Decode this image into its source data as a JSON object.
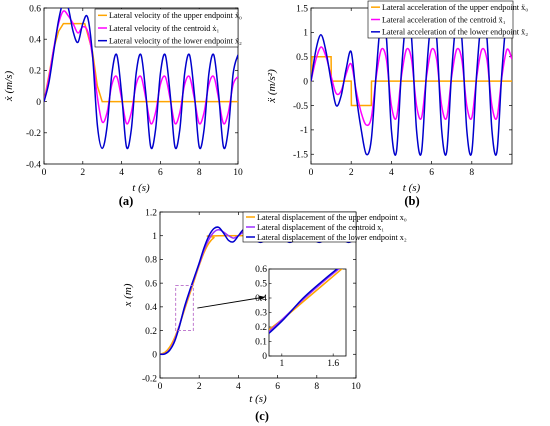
{
  "panels": {
    "a": "(a)",
    "b": "(b)",
    "c": "(c)"
  },
  "chart_data": [
    {
      "type": "line",
      "xlabel": "t (s)",
      "ylabel": "ẋ (m/s)",
      "xlim": [
        0,
        10
      ],
      "ylim": [
        -0.4,
        0.6
      ],
      "xticks": [
        0,
        2,
        4,
        6,
        8,
        10
      ],
      "yticks": [
        -0.4,
        -0.2,
        0,
        0.2,
        0.4,
        0.6
      ],
      "x_tick_labels": [
        "0",
        "2",
        "4",
        "6",
        "8",
        "10"
      ],
      "y_tick_labels": [
        "-0.4",
        "-0.2",
        "0",
        "0.2",
        "0.4",
        "0.6"
      ],
      "legend_position": "top-right",
      "colors": [
        "#FFA500",
        "#FF00FF",
        "#0000CD"
      ],
      "series": [
        {
          "name": "Lateral velocity of the upper endpoint ẋ₀",
          "x": [
            0,
            0.3,
            0.5,
            0.75,
            1,
            2.1,
            2.5,
            2.75,
            3,
            10
          ],
          "y": [
            0,
            0.2,
            0.34,
            0.45,
            0.5,
            0.5,
            0.32,
            0.1,
            0,
            0
          ]
        },
        {
          "name": "Lateral velocity of the centroid ẋ₁",
          "x": [
            0,
            0.25,
            0.5,
            0.75,
            1,
            1.25,
            1.5,
            1.75,
            2,
            2.25,
            2.5,
            2.75,
            3,
            3.25,
            3.5,
            3.75,
            4,
            4.25,
            4.5,
            4.75,
            5,
            5.25,
            5.5,
            5.75,
            6,
            6.25,
            6.5,
            6.75,
            7,
            7.25,
            7.5,
            7.75,
            8,
            8.25,
            8.5,
            8.75,
            9,
            9.25,
            9.5,
            9.75,
            10
          ],
          "y": [
            0,
            0.15,
            0.34,
            0.5,
            0.58,
            0.55,
            0.5,
            0.44,
            0.48,
            0.45,
            0.29,
            0.03,
            -0.13,
            -0.07,
            0.11,
            0.16,
            0.02,
            -0.14,
            -0.07,
            0.11,
            0.16,
            0.02,
            -0.14,
            -0.07,
            0.11,
            0.16,
            0.02,
            -0.14,
            -0.07,
            0.11,
            0.16,
            0.02,
            -0.14,
            -0.07,
            0.11,
            0.16,
            0.02,
            -0.14,
            -0.07,
            0.11,
            0.16
          ]
        },
        {
          "name": "Lateral velocity of the lower endpoint ẋ₂",
          "x": [
            0,
            0.25,
            0.5,
            0.75,
            1,
            1.25,
            1.5,
            1.75,
            2,
            2.25,
            2.5,
            2.75,
            3,
            3.25,
            3.5,
            3.75,
            4,
            4.25,
            4.5,
            4.75,
            5,
            5.25,
            5.5,
            5.75,
            6,
            6.25,
            6.5,
            6.75,
            7,
            7.25,
            7.5,
            7.75,
            8,
            8.25,
            8.5,
            8.75,
            9,
            9.25,
            9.5,
            9.75,
            10
          ],
          "y": [
            0,
            0.12,
            0.32,
            0.52,
            0.64,
            0.6,
            0.45,
            0.38,
            0.5,
            0.54,
            0.3,
            -0.15,
            -0.3,
            -0.16,
            0.18,
            0.3,
            0.05,
            -0.29,
            -0.18,
            0.18,
            0.3,
            0.05,
            -0.29,
            -0.18,
            0.18,
            0.3,
            0.05,
            -0.29,
            -0.18,
            0.18,
            0.3,
            0.05,
            -0.29,
            -0.18,
            0.18,
            0.3,
            0.05,
            -0.29,
            -0.18,
            0.18,
            0.3
          ]
        }
      ]
    },
    {
      "type": "line",
      "xlabel": "t (s)",
      "ylabel": "ẍ (m/s²)",
      "xlim": [
        0,
        10
      ],
      "ylim": [
        -1.7,
        1.5
      ],
      "xticks": [
        0,
        2,
        4,
        6,
        8
      ],
      "yticks": [
        -1.5,
        -1,
        -0.5,
        0,
        0.5,
        1,
        1.5
      ],
      "x_tick_labels": [
        "0",
        "2",
        "4",
        "6",
        "8"
      ],
      "y_tick_labels": [
        "-1.5",
        "-1",
        "-0.5",
        "0",
        "0.5",
        "1",
        "1.5"
      ],
      "legend_position": "top-right",
      "colors": [
        "#FFA500",
        "#FF00FF",
        "#0000CD"
      ],
      "series": [
        {
          "name": "Lateral acceleration of the upper endpoint ẍ₀",
          "x": [
            0,
            0.05,
            1,
            1.01,
            2,
            2.01,
            3,
            3.01,
            10
          ],
          "y": [
            0,
            0.5,
            0.5,
            0,
            0,
            -0.5,
            -0.5,
            0,
            0
          ]
        },
        {
          "name": "Lateral acceleration of the centroid ẍ₁",
          "x": [
            0,
            0.25,
            0.5,
            0.75,
            1,
            1.25,
            1.5,
            1.75,
            2,
            2.25,
            2.5,
            2.75,
            3,
            3.25,
            3.5,
            3.75,
            4,
            4.25,
            4.5,
            4.75,
            5,
            5.25,
            5.5,
            5.75,
            6,
            6.25,
            6.5,
            6.75,
            7,
            7.25,
            7.5,
            7.75,
            8,
            8.25,
            8.5,
            8.75,
            9,
            9.25,
            9.5,
            9.75,
            10
          ],
          "y": [
            0,
            0.45,
            0.7,
            0.5,
            0.1,
            -0.25,
            -0.2,
            0.15,
            0.35,
            -0.2,
            -0.65,
            -0.9,
            -0.75,
            0.1,
            0.65,
            0.45,
            -0.5,
            -0.75,
            0.1,
            0.65,
            0.45,
            -0.5,
            -0.75,
            0.1,
            0.65,
            0.45,
            -0.5,
            -0.75,
            0.1,
            0.65,
            0.45,
            -0.5,
            -0.75,
            0.1,
            0.65,
            0.45,
            -0.5,
            -0.75,
            0.1,
            0.65,
            0.45
          ]
        },
        {
          "name": "Lateral acceleration of the lower endpoint ẍ₂",
          "x": [
            0,
            0.25,
            0.5,
            0.75,
            1,
            1.25,
            1.5,
            1.75,
            2,
            2.25,
            2.5,
            2.75,
            3,
            3.25,
            3.5,
            3.75,
            4,
            4.25,
            4.5,
            4.75,
            5,
            5.25,
            5.5,
            5.75,
            6,
            6.25,
            6.5,
            6.75,
            7,
            7.25,
            7.5,
            7.75,
            8,
            8.25,
            8.5,
            8.75,
            9,
            9.25,
            9.5,
            9.75,
            10
          ],
          "y": [
            0,
            0.65,
            0.95,
            0.6,
            0,
            -0.5,
            -0.3,
            0.25,
            0.6,
            -0.3,
            -1.0,
            -1.5,
            -1.2,
            0.2,
            1.3,
            0.9,
            -1.0,
            -1.45,
            0.2,
            1.3,
            0.9,
            -1.0,
            -1.45,
            0.2,
            1.3,
            0.9,
            -1.0,
            -1.45,
            0.2,
            1.3,
            0.9,
            -1.0,
            -1.45,
            0.2,
            1.3,
            0.9,
            -1.0,
            -1.45,
            0.2,
            1.3,
            0.9
          ]
        }
      ]
    },
    {
      "type": "line",
      "xlabel": "t (s)",
      "ylabel": "x (m)",
      "xlim": [
        0,
        10
      ],
      "ylim": [
        -0.2,
        1.2
      ],
      "xticks": [
        0,
        2,
        4,
        6,
        8,
        10
      ],
      "yticks": [
        -0.2,
        0,
        0.2,
        0.4,
        0.6,
        0.8,
        1,
        1.2
      ],
      "x_tick_labels": [
        "0",
        "2",
        "4",
        "6",
        "8",
        "10"
      ],
      "y_tick_labels": [
        "-0.2",
        "0",
        "0.2",
        "0.4",
        "0.6",
        "0.8",
        "1",
        "1.2"
      ],
      "legend_position": "top-right",
      "colors": [
        "#FFA500",
        "#9B30FF",
        "#0000CD"
      ],
      "series": [
        {
          "name": "Lateral displacement of the upper endpoint x₀",
          "x": [
            0,
            0.25,
            0.5,
            0.75,
            1,
            1.25,
            1.5,
            1.75,
            2,
            2.25,
            2.5,
            2.75,
            3,
            10
          ],
          "y": [
            0,
            0.016,
            0.0625,
            0.141,
            0.25,
            0.375,
            0.5,
            0.625,
            0.75,
            0.859,
            0.938,
            0.984,
            1,
            1
          ]
        },
        {
          "name": "Lateral displacement of the centroid x₁",
          "x": [
            0,
            0.25,
            0.5,
            0.75,
            1,
            1.25,
            1.5,
            1.75,
            2,
            2.25,
            2.5,
            2.75,
            3,
            3.25,
            3.5,
            3.75,
            4,
            4.25,
            4.5,
            4.75,
            5,
            5.25,
            5.5,
            5.75,
            6,
            6.25,
            6.5,
            6.75,
            7,
            7.25,
            7.5,
            7.75,
            8,
            8.25,
            8.5,
            8.75,
            9,
            9.25,
            9.5,
            9.75,
            10
          ],
          "y": [
            0,
            0.005,
            0.04,
            0.12,
            0.25,
            0.39,
            0.52,
            0.64,
            0.76,
            0.88,
            0.97,
            1.03,
            1.05,
            1.03,
            1.0,
            0.98,
            1.0,
            1.03,
            1.04,
            1.02,
            0.99,
            0.98,
            1.0,
            1.03,
            1.04,
            1.02,
            0.99,
            0.98,
            1.0,
            1.03,
            1.04,
            1.02,
            0.99,
            0.98,
            1.0,
            1.03,
            1.04,
            1.02,
            0.99,
            0.98,
            1.0
          ]
        },
        {
          "name": "Lateral displacement of the lower endpoint x₂",
          "x": [
            0,
            0.25,
            0.5,
            0.75,
            1,
            1.25,
            1.5,
            1.75,
            2,
            2.25,
            2.5,
            2.75,
            3,
            3.25,
            3.5,
            3.75,
            4,
            4.25,
            4.5,
            4.75,
            5,
            5.25,
            5.5,
            5.75,
            6,
            6.25,
            6.5,
            6.75,
            7,
            7.25,
            7.5,
            7.75,
            8,
            8.25,
            8.5,
            8.75,
            9,
            9.25,
            9.5,
            9.75,
            10
          ],
          "y": [
            0,
            0.003,
            0.035,
            0.11,
            0.24,
            0.4,
            0.53,
            0.65,
            0.77,
            0.9,
            1.0,
            1.06,
            1.07,
            1.02,
            0.96,
            0.95,
            1.0,
            1.05,
            1.05,
            1.0,
            0.95,
            0.95,
            1.0,
            1.05,
            1.05,
            1.0,
            0.95,
            0.95,
            1.0,
            1.05,
            1.05,
            1.0,
            0.95,
            0.95,
            1.0,
            1.05,
            1.05,
            1.0,
            0.95,
            0.95,
            1.0
          ]
        }
      ],
      "inset": {
        "xlim": [
          0.85,
          1.75
        ],
        "ylim": [
          0,
          0.6
        ],
        "xticks": [
          1,
          1.6
        ],
        "yticks": [
          0,
          0.1,
          0.2,
          0.3,
          0.4,
          0.5,
          0.6
        ],
        "x_tick_labels": [
          "1",
          "1.6"
        ],
        "y_tick_labels": [
          "0",
          "0.1",
          "0.2",
          "0.3",
          "0.4",
          "0.5",
          "0.6"
        ],
        "zoom_box": {
          "x": [
            0.8,
            1.7
          ],
          "y": [
            0.2,
            0.58
          ]
        }
      }
    }
  ]
}
